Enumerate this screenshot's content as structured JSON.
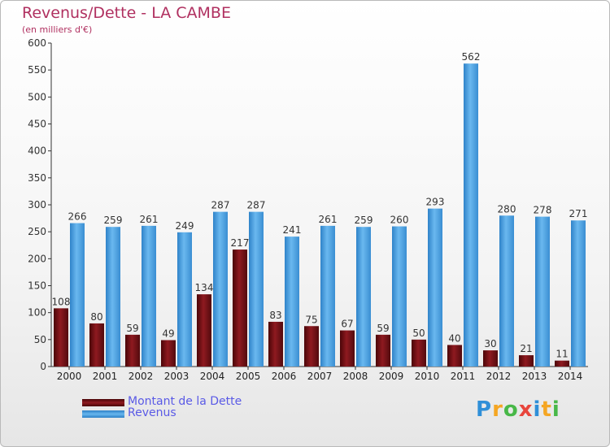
{
  "title": "Revenus/Dette - LA CAMBE",
  "unit_label": "(en milliers d'€)",
  "chart_data": {
    "type": "bar",
    "categories": [
      "2000",
      "2001",
      "2002",
      "2003",
      "2004",
      "2005",
      "2006",
      "2007",
      "2008",
      "2009",
      "2010",
      "2011",
      "2012",
      "2013",
      "2014"
    ],
    "series": [
      {
        "name": "Montant de la Dette",
        "color": "#7a0f14",
        "values": [
          108,
          80,
          59,
          49,
          134,
          217,
          83,
          75,
          67,
          59,
          50,
          40,
          30,
          21,
          11
        ]
      },
      {
        "name": "Revenus",
        "color": "#4fa3e0",
        "values": [
          266,
          259,
          261,
          249,
          287,
          287,
          241,
          261,
          259,
          260,
          293,
          562,
          280,
          278,
          271
        ]
      }
    ],
    "ylim": [
      0,
      600
    ],
    "yticks": [
      0,
      50,
      100,
      150,
      200,
      250,
      300,
      350,
      400,
      450,
      500,
      550,
      600
    ],
    "grid": false,
    "legend_position": "bottom-left"
  },
  "legend": {
    "debt_label": "Montant de la Dette",
    "revenue_label": "Revenus"
  },
  "logo": {
    "parts": [
      "P",
      "r",
      "o",
      "x",
      "i",
      "t",
      "i"
    ]
  }
}
